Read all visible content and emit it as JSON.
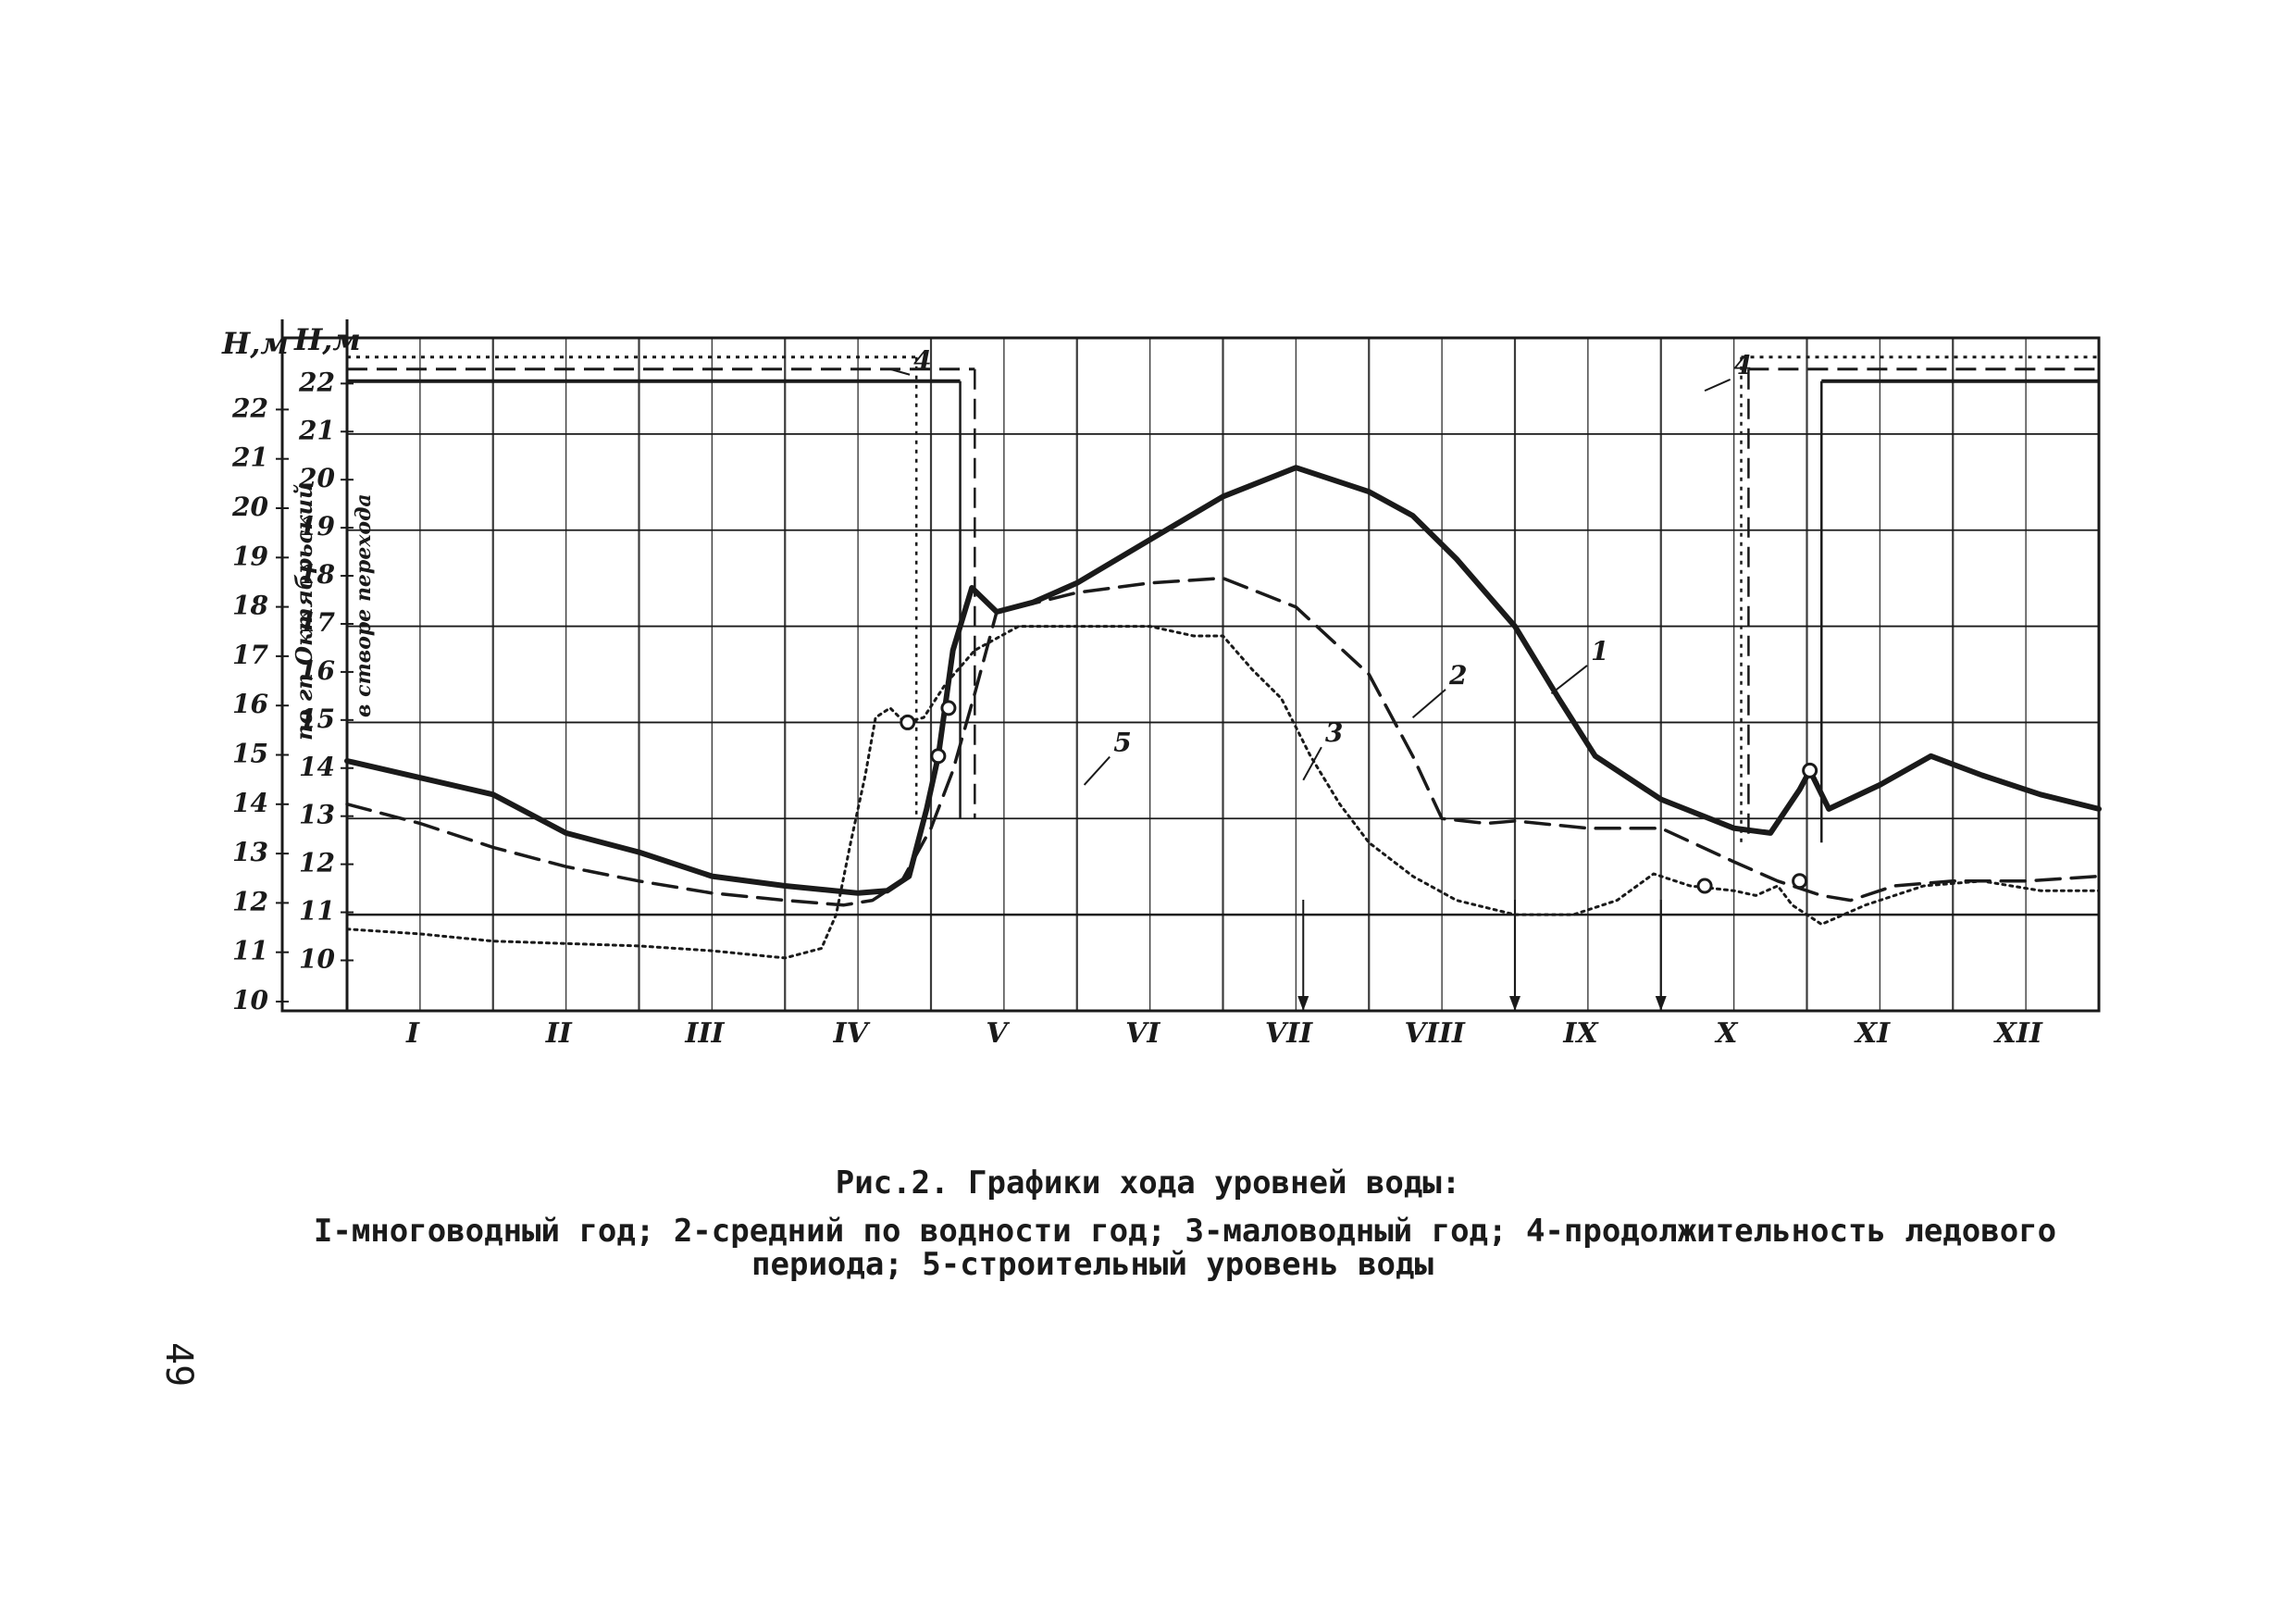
{
  "chart_data": {
    "type": "line",
    "ylabel_outer": "H,м",
    "ylabel_inner": "H,м",
    "yaxis_outer_ticks": [
      "10",
      "11",
      "12",
      "13",
      "14",
      "15",
      "16",
      "17",
      "18",
      "19",
      "20",
      "21",
      "22"
    ],
    "yaxis_inner_ticks": [
      "10",
      "11",
      "12",
      "13",
      "14",
      "15",
      "16",
      "17",
      "18",
      "19",
      "20",
      "21",
      "22"
    ],
    "yaxis_inner_caption_1": "по гп Октябрьский",
    "yaxis_inner_caption_2": "в створе перехода",
    "ylim_inner": [
      9,
      23
    ],
    "months": [
      "I",
      "II",
      "III",
      "IV",
      "V",
      "VI",
      "VII",
      "VIII",
      "IX",
      "X",
      "XI",
      "XII"
    ],
    "xlim": [
      0,
      12
    ],
    "series": [
      {
        "name": "1",
        "style": "solid-thick",
        "points": [
          [
            0,
            14.2
          ],
          [
            1,
            13.5
          ],
          [
            1.5,
            12.7
          ],
          [
            2,
            12.3
          ],
          [
            2.5,
            11.8
          ],
          [
            3,
            11.6
          ],
          [
            3.5,
            11.45
          ],
          [
            3.7,
            11.5
          ],
          [
            3.85,
            11.8
          ],
          [
            3.97,
            13.2
          ],
          [
            4.05,
            14.3
          ],
          [
            4.15,
            16.5
          ],
          [
            4.28,
            17.8
          ],
          [
            4.45,
            17.3
          ],
          [
            4.7,
            17.5
          ],
          [
            5,
            17.9
          ],
          [
            5.5,
            18.8
          ],
          [
            6,
            19.7
          ],
          [
            6.5,
            20.3
          ],
          [
            7,
            19.8
          ],
          [
            7.3,
            19.3
          ],
          [
            7.6,
            18.4
          ],
          [
            8,
            17.0
          ],
          [
            8.3,
            15.5
          ],
          [
            8.55,
            14.3
          ],
          [
            9,
            13.4
          ],
          [
            9.5,
            12.8
          ],
          [
            9.75,
            12.7
          ],
          [
            9.95,
            13.6
          ],
          [
            10.02,
            14.0
          ],
          [
            10.15,
            13.2
          ],
          [
            10.5,
            13.7
          ],
          [
            10.85,
            14.3
          ],
          [
            11.2,
            13.9
          ],
          [
            11.6,
            13.5
          ],
          [
            12,
            13.2
          ]
        ]
      },
      {
        "name": "2",
        "style": "dashed",
        "points": [
          [
            0,
            13.3
          ],
          [
            0.5,
            12.9
          ],
          [
            1,
            12.4
          ],
          [
            1.5,
            12.0
          ],
          [
            2,
            11.7
          ],
          [
            2.5,
            11.45
          ],
          [
            3,
            11.3
          ],
          [
            3.4,
            11.2
          ],
          [
            3.6,
            11.3
          ],
          [
            3.8,
            11.7
          ],
          [
            4.0,
            12.8
          ],
          [
            4.15,
            14.0
          ],
          [
            4.3,
            15.6
          ],
          [
            4.45,
            17.3
          ],
          [
            4.6,
            17.4
          ],
          [
            5,
            17.7
          ],
          [
            5.5,
            17.9
          ],
          [
            6,
            18.0
          ],
          [
            6.5,
            17.4
          ],
          [
            7,
            16.0
          ],
          [
            7.3,
            14.3
          ],
          [
            7.5,
            13.0
          ],
          [
            7.8,
            12.9
          ],
          [
            8,
            12.95
          ],
          [
            8.5,
            12.8
          ],
          [
            9,
            12.8
          ],
          [
            9.5,
            12.1
          ],
          [
            9.8,
            11.7
          ],
          [
            10.1,
            11.4
          ],
          [
            10.3,
            11.3
          ],
          [
            10.6,
            11.6
          ],
          [
            11,
            11.7
          ],
          [
            11.5,
            11.7
          ],
          [
            12,
            11.8
          ]
        ]
      },
      {
        "name": "3",
        "style": "dotted",
        "points": [
          [
            0,
            10.7
          ],
          [
            0.5,
            10.6
          ],
          [
            1,
            10.45
          ],
          [
            1.5,
            10.4
          ],
          [
            2,
            10.35
          ],
          [
            2.5,
            10.25
          ],
          [
            3,
            10.1
          ],
          [
            3.25,
            10.3
          ],
          [
            3.35,
            11.0
          ],
          [
            3.45,
            12.5
          ],
          [
            3.55,
            13.9
          ],
          [
            3.62,
            15.1
          ],
          [
            3.72,
            15.3
          ],
          [
            3.82,
            15.0
          ],
          [
            3.95,
            15.1
          ],
          [
            4.1,
            15.8
          ],
          [
            4.3,
            16.5
          ],
          [
            4.6,
            17.0
          ],
          [
            5,
            17.0
          ],
          [
            5.5,
            17.0
          ],
          [
            5.8,
            16.8
          ],
          [
            6,
            16.8
          ],
          [
            6.2,
            16.1
          ],
          [
            6.4,
            15.5
          ],
          [
            6.6,
            14.3
          ],
          [
            6.8,
            13.3
          ],
          [
            7,
            12.5
          ],
          [
            7.3,
            11.8
          ],
          [
            7.6,
            11.3
          ],
          [
            8,
            11.0
          ],
          [
            8.4,
            11.0
          ],
          [
            8.7,
            11.3
          ],
          [
            8.95,
            11.85
          ],
          [
            9.2,
            11.6
          ],
          [
            9.5,
            11.5
          ],
          [
            9.65,
            11.4
          ],
          [
            9.8,
            11.6
          ],
          [
            9.9,
            11.2
          ],
          [
            10.1,
            10.8
          ],
          [
            10.4,
            11.2
          ],
          [
            10.8,
            11.6
          ],
          [
            11.2,
            11.7
          ],
          [
            11.6,
            11.5
          ],
          [
            12,
            11.5
          ]
        ]
      }
    ],
    "ice_period_lines": [
      {
        "style": "solid",
        "level": 22.1,
        "segments": [
          [
            0,
            4.2
          ],
          [
            10.1,
            12
          ]
        ]
      },
      {
        "style": "dashed",
        "level": 22.35,
        "segments": [
          [
            0,
            4.3
          ],
          [
            9.6,
            12
          ]
        ]
      },
      {
        "style": "dotted",
        "level": 22.6,
        "segments": [
          [
            0,
            3.9
          ],
          [
            9.55,
            12
          ]
        ]
      }
    ],
    "construction_level": 11.0,
    "series_labels": [
      "1",
      "2",
      "3",
      "4",
      "4",
      "5"
    ],
    "grid": true
  },
  "caption": {
    "title": "Рис.2. Графики хода уровней воды:",
    "line1": "I-многоводный год; 2-средний по водности год; 3-маловодный год; 4-продолжительность ледового",
    "line2": "периода; 5-строительный уровень воды"
  },
  "page_number": "49"
}
